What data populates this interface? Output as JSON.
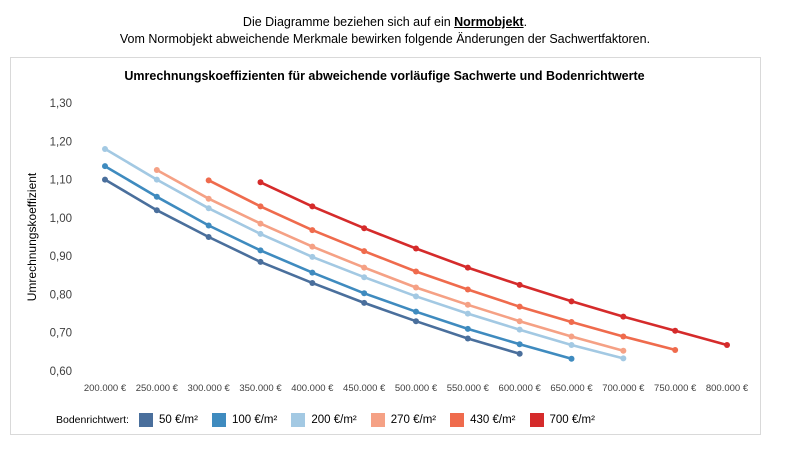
{
  "intro": {
    "line1_before": "Die Diagramme beziehen sich auf ein ",
    "line1_key": "Normobjekt",
    "line1_after": ".",
    "line2": "Vom Normobjekt abweichende Merkmale bewirken folgende Änderungen der Sachwertfaktoren."
  },
  "legend": {
    "label": "Bodenrichtwert:"
  },
  "chart_data": {
    "type": "line",
    "title": "Umrechnungskoeffizienten für abweichende vorläufige Sachwerte und Bodenrichtwerte",
    "xlabel": "",
    "ylabel": "Umrechnungskoeffizient",
    "xlim": [
      200000,
      800000
    ],
    "ylim": [
      0.6,
      1.3
    ],
    "x_ticks": [
      200000,
      250000,
      300000,
      350000,
      400000,
      450000,
      500000,
      550000,
      600000,
      650000,
      700000,
      750000,
      800000
    ],
    "x_tick_labels": [
      "200.000 €",
      "250.000 €",
      "300.000 €",
      "350.000 €",
      "400.000 €",
      "450.000 €",
      "500.000 €",
      "550.000 €",
      "600.000 €",
      "650.000 €",
      "700.000 €",
      "750.000 €",
      "800.000 €"
    ],
    "y_ticks": [
      0.6,
      0.7,
      0.8,
      0.9,
      1.0,
      1.1,
      1.2,
      1.3
    ],
    "y_tick_labels": [
      "0,60",
      "0,70",
      "0,80",
      "0,90",
      "1,00",
      "1,10",
      "1,20",
      "1,30"
    ],
    "grid": false,
    "legend_position": "bottom",
    "series": [
      {
        "name": "50 €/m²",
        "color": "#4a6f9c",
        "x": [
          200000,
          250000,
          300000,
          350000,
          400000,
          450000,
          500000,
          550000,
          600000
        ],
        "y": [
          1.1,
          1.02,
          0.95,
          0.885,
          0.83,
          0.778,
          0.73,
          0.685,
          0.645
        ]
      },
      {
        "name": "100 €/m²",
        "color": "#3f8bbf",
        "x": [
          200000,
          250000,
          300000,
          350000,
          400000,
          450000,
          500000,
          550000,
          600000,
          650000
        ],
        "y": [
          1.135,
          1.055,
          0.98,
          0.915,
          0.857,
          0.803,
          0.755,
          0.71,
          0.67,
          0.632
        ]
      },
      {
        "name": "200 €/m²",
        "color": "#a3c9e3",
        "x": [
          200000,
          250000,
          300000,
          350000,
          400000,
          450000,
          500000,
          550000,
          600000,
          650000,
          700000
        ],
        "y": [
          1.18,
          1.1,
          1.025,
          0.958,
          0.898,
          0.845,
          0.795,
          0.75,
          0.708,
          0.668,
          0.633
        ]
      },
      {
        "name": "270 €/m²",
        "color": "#f5a185",
        "x": [
          250000,
          300000,
          350000,
          400000,
          450000,
          500000,
          550000,
          600000,
          650000,
          700000
        ],
        "y": [
          1.125,
          1.05,
          0.985,
          0.925,
          0.87,
          0.818,
          0.773,
          0.73,
          0.69,
          0.653
        ]
      },
      {
        "name": "430 €/m²",
        "color": "#ef6b4d",
        "x": [
          300000,
          350000,
          400000,
          450000,
          500000,
          550000,
          600000,
          650000,
          700000,
          750000
        ],
        "y": [
          1.098,
          1.03,
          0.968,
          0.913,
          0.86,
          0.813,
          0.768,
          0.728,
          0.69,
          0.655
        ]
      },
      {
        "name": "700 €/m²",
        "color": "#d52b2b",
        "x": [
          350000,
          400000,
          450000,
          500000,
          550000,
          600000,
          650000,
          700000,
          750000,
          800000
        ],
        "y": [
          1.093,
          1.03,
          0.973,
          0.92,
          0.87,
          0.825,
          0.782,
          0.742,
          0.705,
          0.668
        ]
      }
    ]
  }
}
